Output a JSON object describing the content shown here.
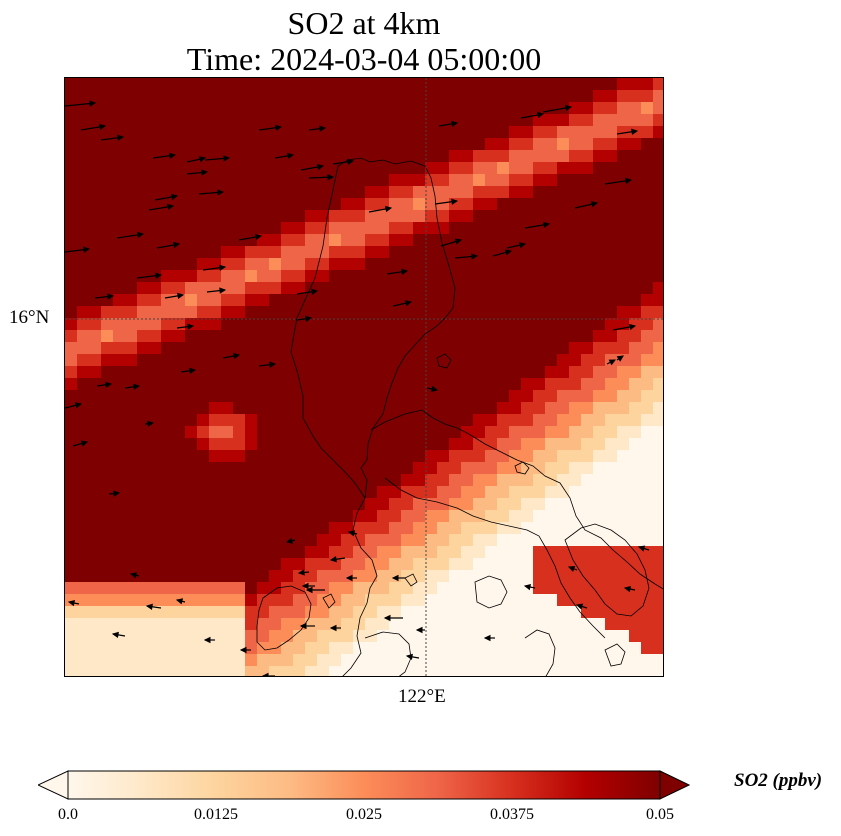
{
  "title": {
    "line1": "SO2 at 4km",
    "line2": "Time: 2024-03-04 05:00:00"
  },
  "map": {
    "variable": "SO2",
    "height": "4km",
    "time": "2024-03-04 05:00:00",
    "lat_tick": "16°N",
    "lon_tick": "122°E",
    "gridlines": "dotted",
    "overlays": [
      "SO2 concentration field",
      "wind vectors",
      "coastlines"
    ]
  },
  "colorbar": {
    "label": "SO2 (ppbv)",
    "ticks": [
      "0.0",
      "0.0125",
      "0.025",
      "0.0375",
      "0.05"
    ],
    "min": 0,
    "max": 0.05,
    "colormap": "OrRd",
    "colors": [
      "#fff7ec",
      "#fee8c8",
      "#fdd49e",
      "#fdbb84",
      "#fc8d59",
      "#ef6548",
      "#d7301f",
      "#b30000",
      "#7f0000"
    ],
    "extend": "both"
  }
}
